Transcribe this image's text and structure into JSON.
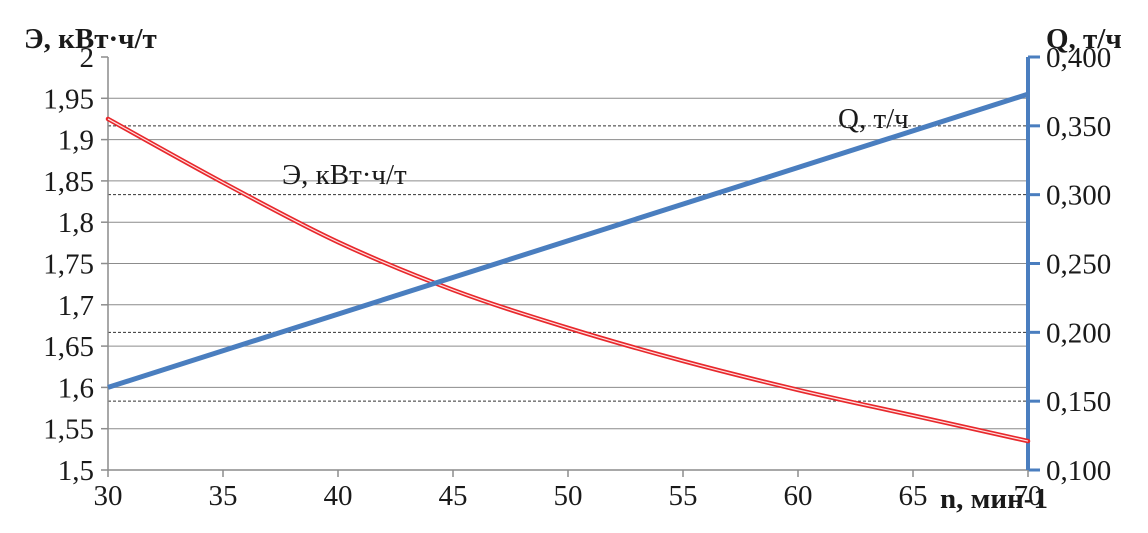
{
  "chart_data": {
    "type": "line",
    "x_axis": {
      "label": "n, мин-1",
      "range": [
        30,
        70
      ],
      "ticks": [
        "30",
        "35",
        "40",
        "45",
        "50",
        "55",
        "60",
        "65",
        "70"
      ]
    },
    "y_left": {
      "label": "Э, кВт·ч/т",
      "range": [
        1.5,
        2.0
      ],
      "ticks": [
        "1,5",
        "1,55",
        "1,6",
        "1,65",
        "1,7",
        "1,75",
        "1,8",
        "1,85",
        "1,9",
        "1,95",
        "2"
      ]
    },
    "y_right": {
      "label": "Q, т/ч",
      "range": [
        0.1,
        0.4
      ],
      "ticks": [
        "0,100",
        "0,150",
        "0,200",
        "0,250",
        "0,300",
        "0,350",
        "0,400"
      ]
    },
    "series": [
      {
        "name": "Э, кВт·ч/т",
        "axis": "left",
        "color": "#e8282c",
        "x": [
          30,
          35,
          40,
          45,
          50,
          55,
          60,
          65,
          70
        ],
        "y": [
          1.925,
          1.848,
          1.776,
          1.718,
          1.672,
          1.632,
          1.597,
          1.566,
          1.535
        ]
      },
      {
        "name": "Q, т/ч",
        "axis": "right",
        "color": "#4a7ebf",
        "x": [
          30,
          70
        ],
        "y": [
          0.16,
          0.373
        ]
      }
    ],
    "gridlines": {
      "solid_at_left": [
        1.55,
        1.6,
        1.65,
        1.7,
        1.75,
        1.8,
        1.85,
        1.9,
        1.95
      ],
      "dashed_at_right": [
        0.15,
        0.2,
        0.3,
        0.35
      ]
    }
  }
}
